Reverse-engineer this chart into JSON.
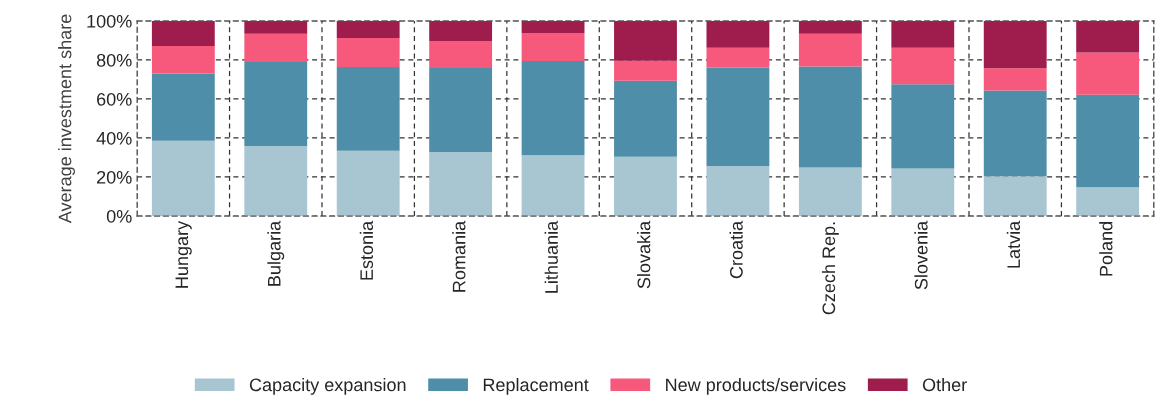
{
  "chart_data": {
    "type": "bar",
    "stacked": true,
    "ylabel": "Average investment share",
    "categories": [
      "Hungary",
      "Bulgaria",
      "Estonia",
      "Romania",
      "Lithuania",
      "Slovakia",
      "Croatia",
      "Czech Rep.",
      "Slovenia",
      "Latvia",
      "Poland"
    ],
    "series": [
      {
        "name": "Capacity expansion",
        "color": "#a7c6d1",
        "values": [
          38.6,
          35.9,
          33.5,
          32.8,
          31.1,
          30.4,
          25.6,
          24.9,
          24.3,
          20.4,
          14.7
        ]
      },
      {
        "name": "Replacement",
        "color": "#4f8ea8",
        "values": [
          34.4,
          43.1,
          42.9,
          43.1,
          48.4,
          39.0,
          50.6,
          51.7,
          43.3,
          43.9,
          47.5
        ]
      },
      {
        "name": "New products/services",
        "color": "#f6597b",
        "values": [
          14.1,
          14.5,
          14.9,
          13.8,
          14.3,
          10.2,
          10.0,
          16.8,
          18.6,
          11.4,
          21.6
        ]
      },
      {
        "name": "Other",
        "color": "#9e1d4d",
        "values": [
          12.9,
          6.5,
          8.7,
          10.3,
          6.2,
          20.4,
          13.8,
          6.6,
          13.8,
          24.3,
          16.2
        ]
      }
    ],
    "ylim": [
      0,
      100
    ],
    "yticks": [
      {
        "value": 0,
        "label": "0%"
      },
      {
        "value": 20,
        "label": "20%"
      },
      {
        "value": 40,
        "label": "40%"
      },
      {
        "value": 60,
        "label": "60%"
      },
      {
        "value": 80,
        "label": "80%"
      },
      {
        "value": 100,
        "label": "100%"
      }
    ],
    "grid": true,
    "legend": "bottom"
  }
}
